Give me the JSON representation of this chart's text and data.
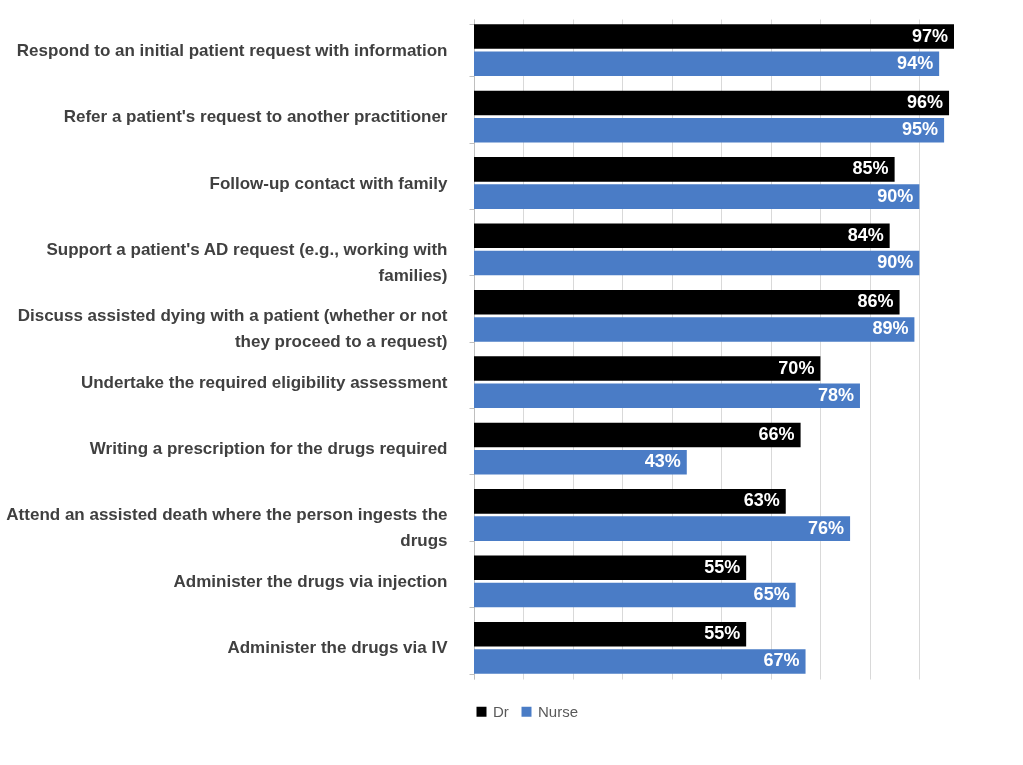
{
  "chart_data": {
    "type": "bar",
    "orientation": "horizontal",
    "categories": [
      "Respond to an initial patient request with information",
      "Refer a patient's request to another practitioner",
      "Follow-up contact with family",
      "Support a patient's AD request (e.g., working with families)",
      "Discuss assisted dying with a patient (whether or not they proceed to a request)",
      "Undertake the required eligibility assessment",
      "Writing a prescription for the drugs required",
      "Attend an assisted death where the person ingests the drugs",
      "Administer the drugs via injection",
      "Administer the drugs via IV"
    ],
    "series": [
      {
        "name": "Dr",
        "color": "#000000",
        "values": [
          97,
          96,
          85,
          84,
          86,
          70,
          66,
          63,
          55,
          55
        ],
        "value_labels": [
          "97%",
          "96%",
          "85%",
          "84%",
          "86%",
          "70%",
          "66%",
          "63%",
          "55%",
          "55%"
        ]
      },
      {
        "name": "Nurse",
        "color": "#4a7cc6",
        "values": [
          94,
          95,
          90,
          90,
          89,
          78,
          43,
          76,
          65,
          67
        ],
        "value_labels": [
          "94%",
          "95%",
          "90%",
          "90%",
          "89%",
          "78%",
          "43%",
          "76%",
          "65%",
          "67%"
        ]
      }
    ],
    "xticks": [
      {
        "value": 0,
        "label": null
      },
      {
        "value": 10,
        "label": null
      },
      {
        "value": 20,
        "label": null
      },
      {
        "value": 30,
        "label": null
      },
      {
        "value": 40,
        "label": null
      },
      {
        "value": 50,
        "label": null
      },
      {
        "value": 60,
        "label": null
      },
      {
        "value": 70,
        "label": null
      },
      {
        "value": 80,
        "label": null
      },
      {
        "value": 90,
        "label": null
      }
    ],
    "grid": "x",
    "tick_labels": "y",
    "legend": "bottom"
  }
}
